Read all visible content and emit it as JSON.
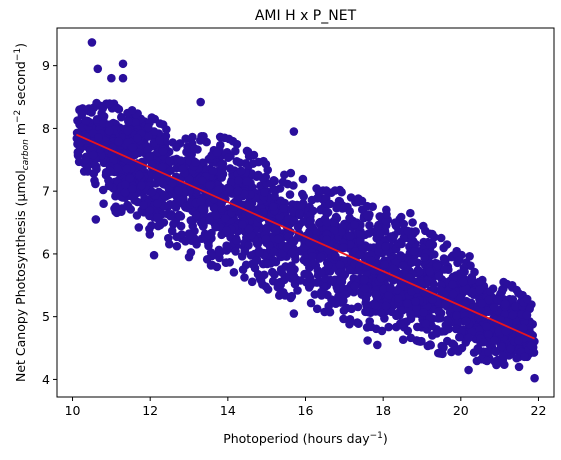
{
  "chart_data": {
    "type": "scatter",
    "title": "AMI H x P_NET",
    "xlabel": {
      "main": "Photoperiod (hours day",
      "sup": "−1",
      "tail": ")"
    },
    "ylabel": {
      "main": "Net Canopy Photosynthesis (μmol",
      "sub": "carbon",
      "mid1": " m",
      "sup1": "−2",
      "mid2": " second",
      "sup2": "−1",
      "tail": ")"
    },
    "xlim": [
      9.6,
      22.4
    ],
    "ylim": [
      3.72,
      9.6
    ],
    "x_ticks": [
      10,
      12,
      14,
      16,
      18,
      20,
      22
    ],
    "y_ticks": [
      4,
      5,
      6,
      7,
      8,
      9
    ],
    "grid": false,
    "legend": "none",
    "colors": {
      "points": "#2a0f9c",
      "fit_line": "#e8141e"
    },
    "fit_line": {
      "x": [
        10.1,
        21.9
      ],
      "y": [
        7.9,
        4.65
      ]
    },
    "series": [
      {
        "band_center": {
          "x": [
            10.1,
            11,
            12,
            13,
            14,
            15,
            16,
            17,
            18,
            19,
            20,
            21,
            21.9
          ],
          "y": [
            7.9,
            7.65,
            7.38,
            7.1,
            6.83,
            6.55,
            6.27,
            6.0,
            5.72,
            5.45,
            5.18,
            4.9,
            4.65
          ]
        },
        "band_upper": {
          "x": [
            10.1,
            11,
            12,
            13,
            14,
            15,
            16,
            17,
            18,
            19,
            20,
            21,
            21.9
          ],
          "y": [
            8.35,
            8.45,
            8.2,
            7.95,
            7.85,
            7.45,
            7.2,
            7.0,
            6.75,
            6.5,
            6.05,
            5.7,
            5.2
          ]
        },
        "band_lower": {
          "x": [
            10.1,
            11,
            12,
            13,
            14,
            15,
            16,
            17,
            18,
            19,
            20,
            21,
            21.9
          ],
          "y": [
            7.45,
            6.7,
            6.3,
            6.0,
            5.65,
            5.4,
            5.2,
            4.9,
            4.7,
            4.5,
            4.3,
            4.2,
            4.4
          ]
        },
        "outliers": [
          {
            "x": 10.5,
            "y": 9.37
          },
          {
            "x": 10.65,
            "y": 8.95
          },
          {
            "x": 11.0,
            "y": 8.8
          },
          {
            "x": 11.3,
            "y": 9.03
          },
          {
            "x": 11.3,
            "y": 8.8
          },
          {
            "x": 10.6,
            "y": 6.55
          },
          {
            "x": 10.8,
            "y": 6.8
          },
          {
            "x": 13.3,
            "y": 8.42
          },
          {
            "x": 15.7,
            "y": 7.95
          },
          {
            "x": 15.7,
            "y": 5.05
          },
          {
            "x": 17.6,
            "y": 4.62
          },
          {
            "x": 17.85,
            "y": 4.55
          },
          {
            "x": 18.7,
            "y": 6.65
          },
          {
            "x": 20.2,
            "y": 4.15
          },
          {
            "x": 21.9,
            "y": 4.02
          },
          {
            "x": 21.5,
            "y": 4.2
          },
          {
            "x": 12.1,
            "y": 5.98
          },
          {
            "x": 13.0,
            "y": 5.95
          }
        ]
      }
    ]
  }
}
